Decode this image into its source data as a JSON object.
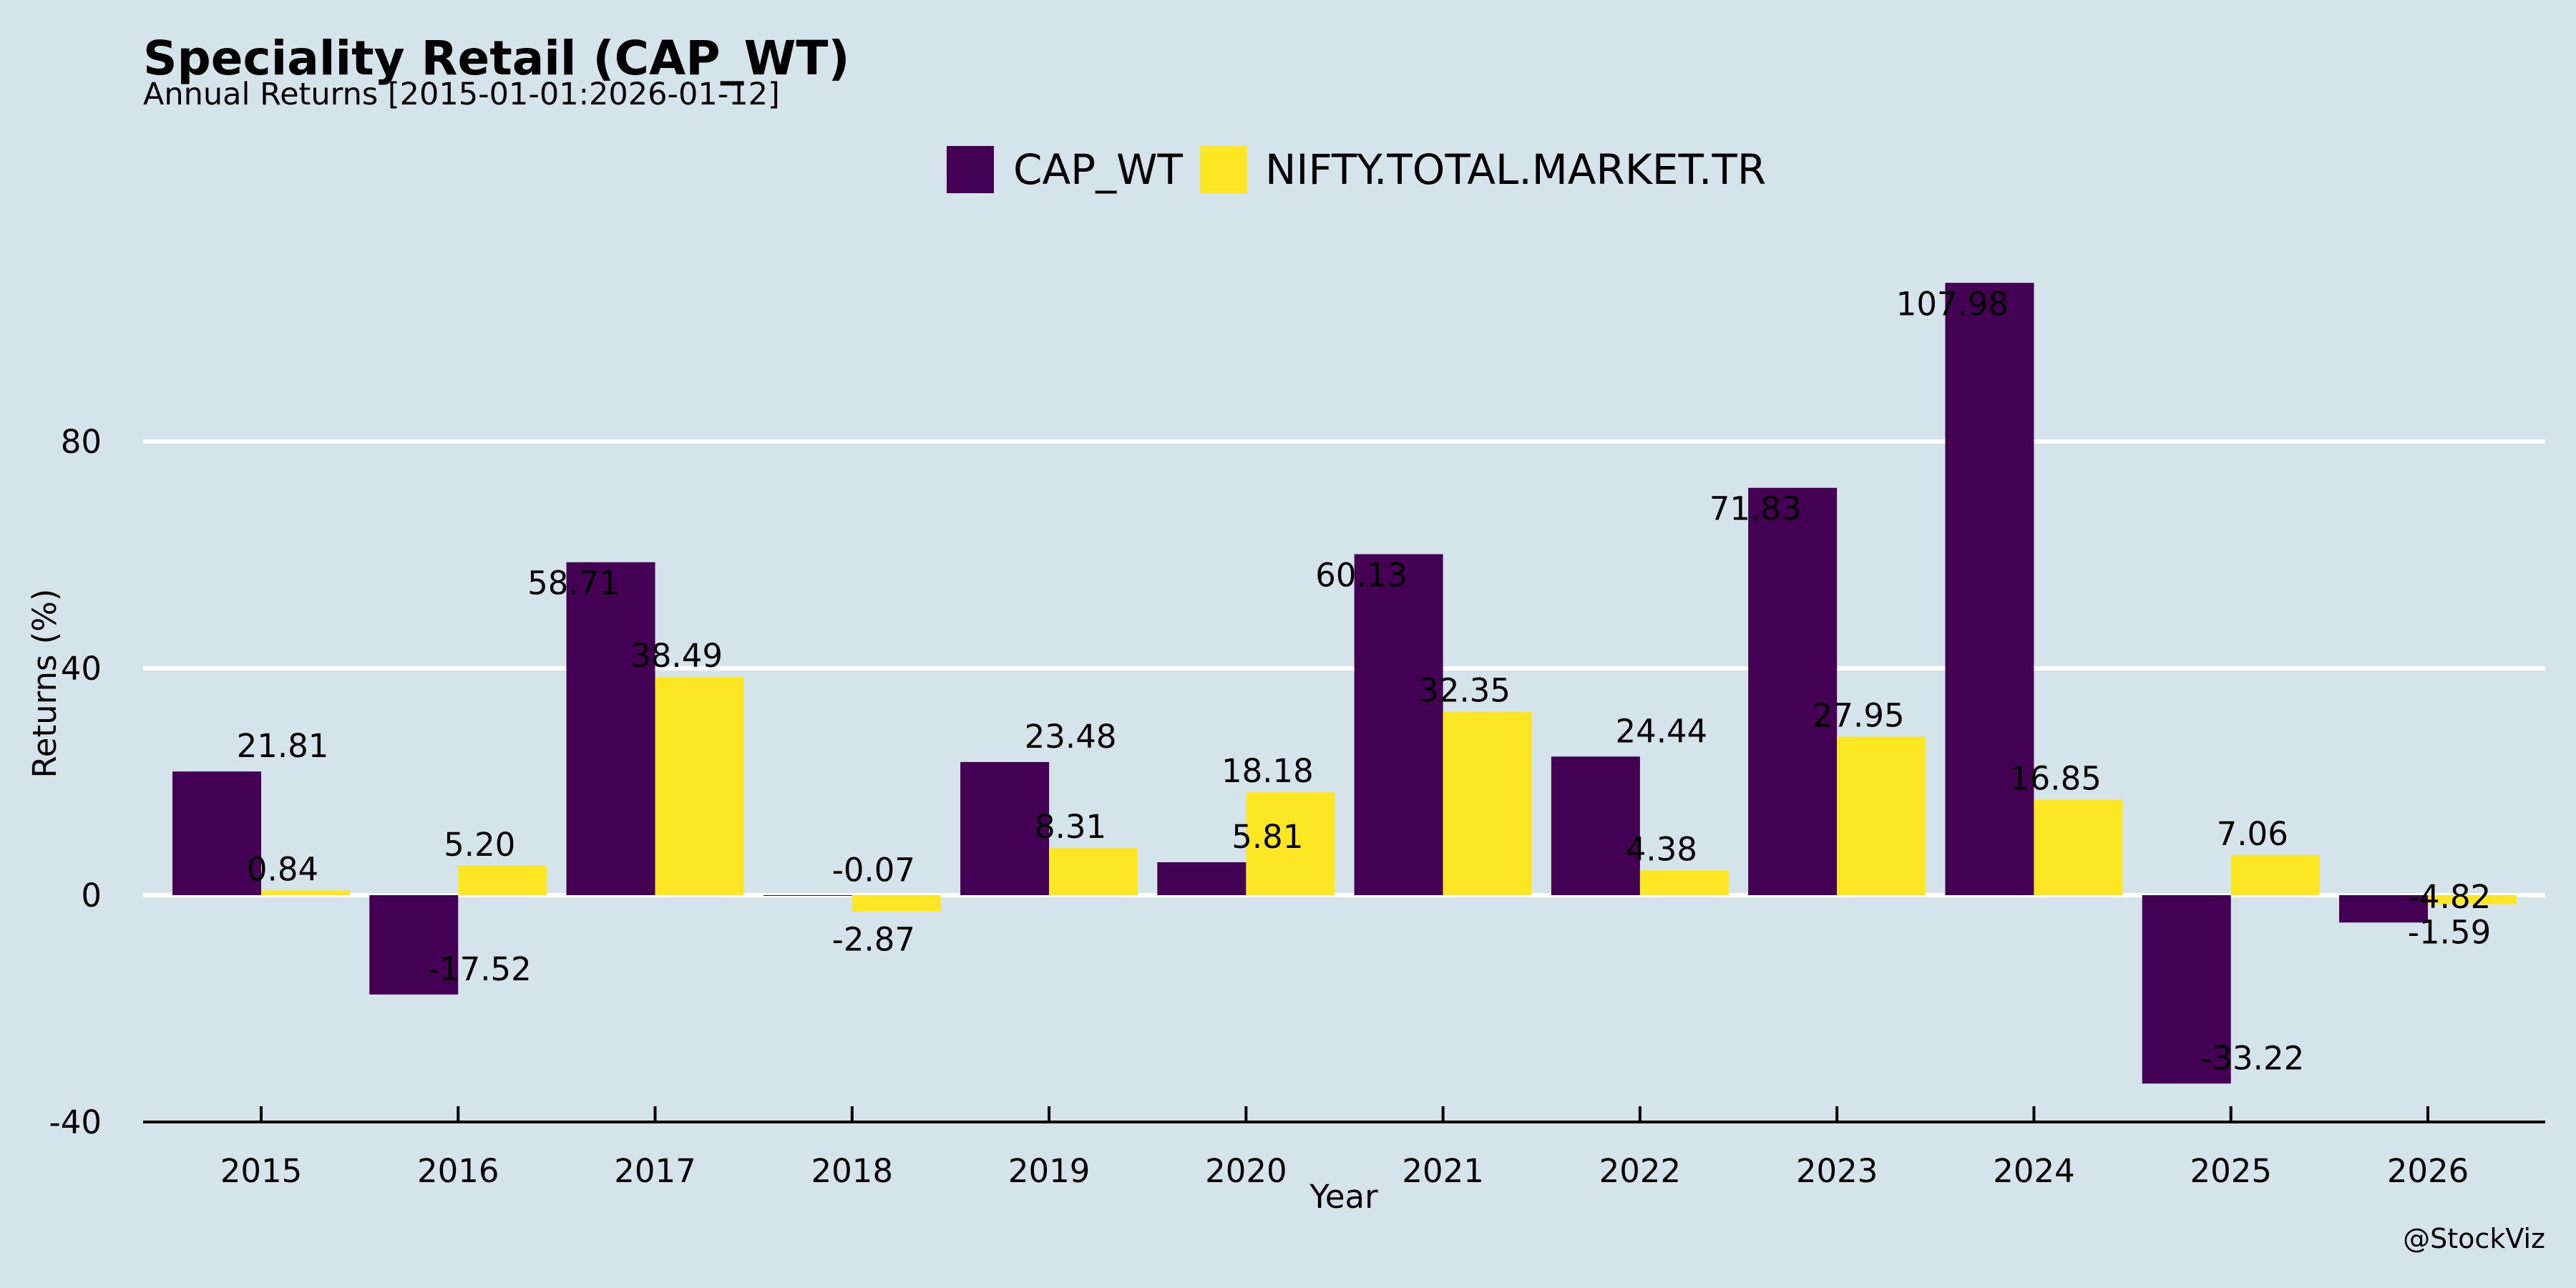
{
  "chart_data": {
    "type": "bar",
    "title": "Speciality Retail (CAP_WT)",
    "subtitle": "Annual Returns [2015-01-01:2026-01-12]",
    "xlabel": "Year",
    "ylabel": "Returns (%)",
    "ylim": [
      -40,
      120
    ],
    "yticks": [
      -40,
      0,
      40,
      80
    ],
    "ytick_labels": [
      "-40",
      "0",
      "40",
      "80"
    ],
    "grid": true,
    "legend_position": "top-center",
    "categories": [
      "2015",
      "2016",
      "2017",
      "2018",
      "2019",
      "2020",
      "2021",
      "2022",
      "2023",
      "2024",
      "2025",
      "2026"
    ],
    "series": [
      {
        "name": "CAP_WT",
        "color": "#440154",
        "values": [
          21.81,
          -17.52,
          58.71,
          -0.07,
          23.48,
          5.81,
          60.13,
          24.44,
          71.83,
          107.98,
          -33.22,
          -4.82
        ],
        "labels": [
          "21.81",
          "-17.52",
          "58.71",
          "-0.07",
          "23.48",
          "5.81",
          "60.13",
          "24.44",
          "71.83",
          "107.98",
          "-33.22",
          "-4.82"
        ]
      },
      {
        "name": "NIFTY.TOTAL.MARKET.TR",
        "color": "#fde725",
        "values": [
          0.84,
          5.2,
          38.49,
          -2.87,
          8.31,
          18.18,
          32.35,
          4.38,
          27.95,
          16.85,
          7.06,
          -1.59
        ],
        "labels": [
          "0.84",
          "5.20",
          "38.49",
          "-2.87",
          "8.31",
          "18.18",
          "32.35",
          "4.38",
          "27.95",
          "16.85",
          "7.06",
          "-1.59"
        ]
      }
    ],
    "watermark": "@StockViz"
  },
  "colors": {
    "background": "#d5e4eb",
    "grid": "#ffffff",
    "axis": "#000000"
  }
}
